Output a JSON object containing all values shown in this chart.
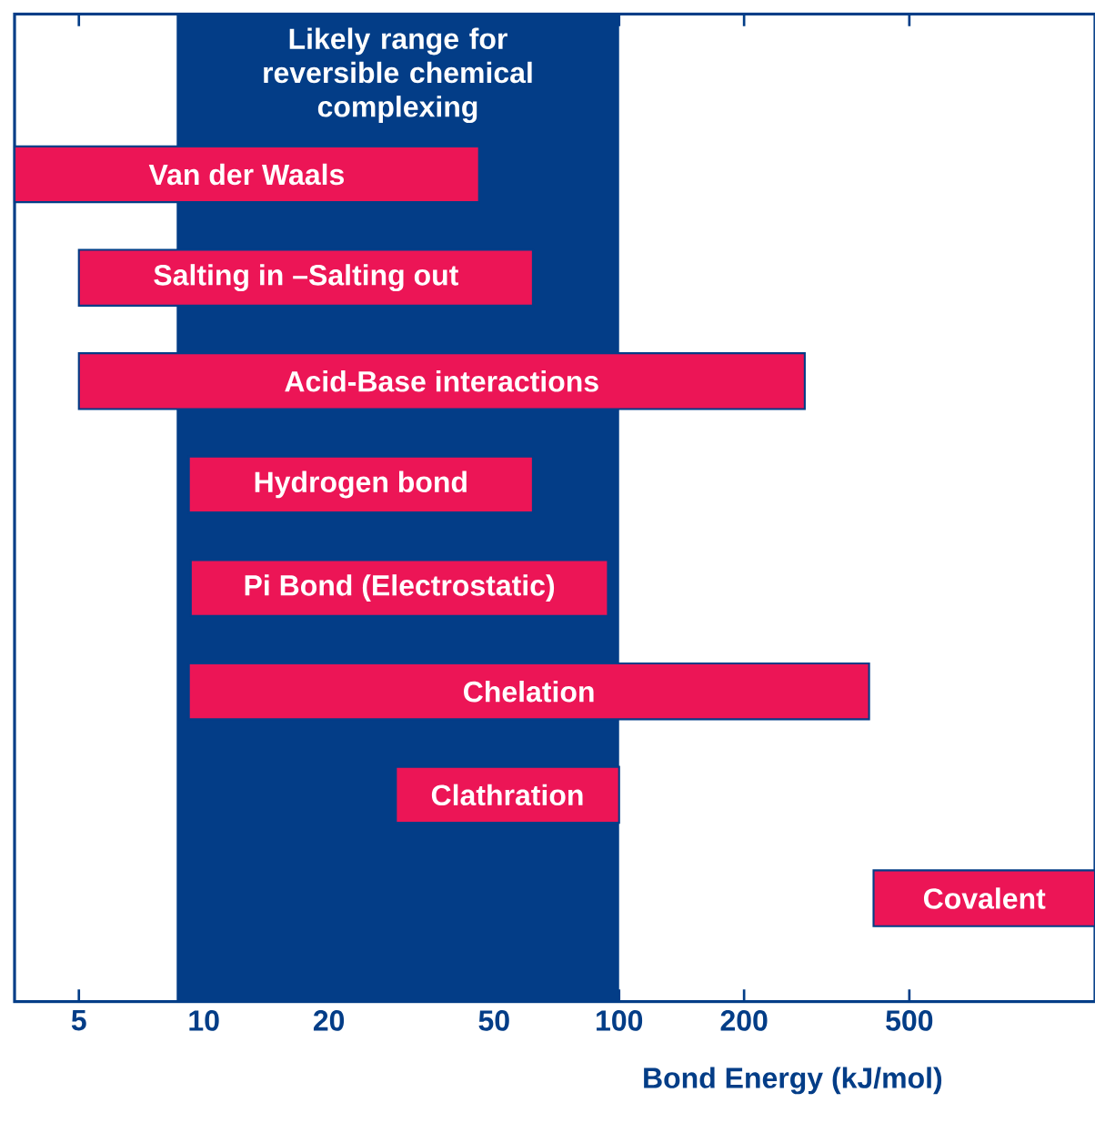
{
  "chart_data": {
    "type": "bar",
    "orientation": "horizontal",
    "categories": [
      "Van der Waals",
      "Salting in –Salting out",
      "Acid-Base interactions",
      "Hydrogen bond",
      "Pi Bond (Electrostatic)",
      "Chelation",
      "Clathration",
      "Covalent"
    ],
    "base": [
      3.5,
      5,
      5,
      9.2,
      9.3,
      9.2,
      29,
      410
    ],
    "values": [
      42.5,
      57,
      275,
      52.8,
      84.7,
      390.8,
      71,
      990
    ],
    "color": "#ec1556",
    "xlabel": "Bond Energy (kJ/mol)",
    "log": "x",
    "xlim": [
      3.5,
      1400
    ],
    "xticks": [
      5,
      10,
      20,
      50,
      100,
      200,
      500
    ],
    "bands": [
      {
        "axis": "x",
        "from": 8.6,
        "to": 100,
        "label": "Likely range for reversible chemical complexing",
        "color": "#033d87"
      }
    ]
  }
}
